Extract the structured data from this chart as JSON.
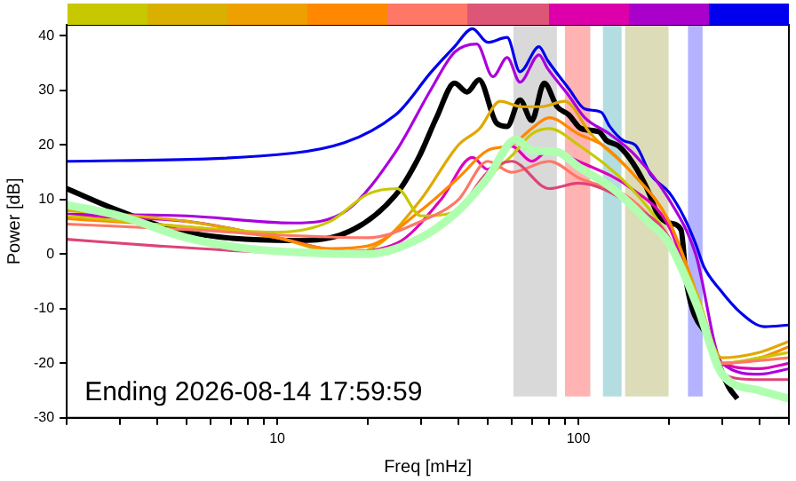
{
  "chart_data": {
    "type": "line",
    "xlabel": "Freq [mHz]",
    "ylabel": "Power [dB]",
    "annotations": [
      "Ending 2026-08-14 17:59:59"
    ],
    "xlim": [
      2,
      500
    ],
    "ylim": [
      -30,
      42
    ],
    "log": "x",
    "legend": false,
    "marker": "none",
    "line_style": "solid",
    "xticks": [
      {
        "value": 2,
        "label": null
      },
      {
        "value": 3,
        "label": null
      },
      {
        "value": 4,
        "label": null
      },
      {
        "value": 5,
        "label": null
      },
      {
        "value": 6,
        "label": null
      },
      {
        "value": 7,
        "label": null
      },
      {
        "value": 8,
        "label": null
      },
      {
        "value": 9,
        "label": null
      },
      10,
      {
        "value": 20,
        "label": null
      },
      {
        "value": 30,
        "label": null
      },
      {
        "value": 40,
        "label": null
      },
      {
        "value": 50,
        "label": null
      },
      {
        "value": 60,
        "label": null
      },
      {
        "value": 70,
        "label": null
      },
      {
        "value": 80,
        "label": null
      },
      {
        "value": 90,
        "label": null
      },
      100,
      {
        "value": 200,
        "label": null
      },
      {
        "value": 300,
        "label": null
      },
      {
        "value": 400,
        "label": null
      },
      {
        "value": 500,
        "label": null
      }
    ],
    "yticks": [
      -30,
      -20,
      -10,
      0,
      10,
      20,
      30,
      40
    ],
    "bands": [
      {
        "axis": "x",
        "from": 60,
        "to": 86,
        "color": "#d9d9d9"
      },
      {
        "axis": "x",
        "from": 89,
        "to": 111,
        "color": "#ffb3b3"
      },
      {
        "axis": "x",
        "from": 119,
        "to": 141,
        "color": "#b3dde0"
      },
      {
        "axis": "x",
        "from": 141,
        "to": 202,
        "color": "#dcdcb8"
      },
      {
        "axis": "x",
        "from": 228,
        "to": 262,
        "color": "#b3b3ff"
      }
    ],
    "series": [
      {
        "color": "#b0ffb0",
        "x": [
          2,
          3,
          5,
          8,
          12,
          20,
          30,
          40,
          50,
          62,
          70,
          85,
          100,
          130,
          170,
          200,
          250,
          300,
          400,
          500
        ],
        "values": [
          9,
          7,
          3,
          1,
          0.3,
          0,
          3,
          8,
          14,
          21,
          19,
          18.7,
          16,
          12,
          6,
          2,
          -10,
          -22,
          -25,
          -26.5
        ]
      },
      {
        "color": "#dd4477",
        "x": [
          2,
          4,
          8,
          15,
          20,
          30,
          40,
          50,
          60,
          80,
          100,
          150,
          200,
          250,
          300,
          400,
          500
        ],
        "values": [
          2.7,
          1.5,
          0.5,
          0,
          0.5,
          3,
          8,
          15,
          17,
          12,
          13,
          9,
          3,
          -10,
          -22,
          -23,
          -23
        ]
      },
      {
        "color": "#ff7766",
        "x": [
          2,
          5,
          10,
          20,
          30,
          40,
          50,
          60,
          80,
          100,
          150,
          200,
          250,
          300,
          400,
          500
        ],
        "values": [
          5.5,
          4.5,
          3.5,
          3,
          6,
          10,
          17,
          15,
          17,
          14,
          10,
          2,
          -10,
          -20,
          -19.5,
          -19
        ]
      },
      {
        "color": "#c8c800",
        "x": [
          2,
          5,
          10,
          15,
          20,
          25,
          30,
          40,
          50,
          60,
          70,
          80,
          100,
          150,
          200,
          250,
          300,
          400,
          500
        ],
        "values": [
          7,
          5,
          4,
          6,
          11,
          12,
          7,
          8,
          14,
          18,
          22,
          23,
          20,
          12,
          3,
          -8,
          -20,
          -19,
          -18
        ]
      },
      {
        "color": "#ff8800",
        "x": [
          2,
          5,
          10,
          15,
          20,
          30,
          40,
          50,
          60,
          70,
          80,
          100,
          120,
          150,
          200,
          250,
          300,
          400,
          500
        ],
        "values": [
          6.5,
          5,
          3,
          1,
          1.5,
          8,
          14,
          19,
          20,
          23,
          25,
          22,
          20,
          15,
          6,
          -8,
          -20,
          -19,
          -17
        ]
      },
      {
        "color": "#e0a800",
        "x": [
          2,
          5,
          10,
          17,
          22,
          30,
          40,
          47,
          55,
          65,
          75,
          90,
          110,
          150,
          200,
          250,
          300,
          400,
          500
        ],
        "values": [
          8,
          6,
          3,
          0,
          2,
          10,
          20,
          23,
          28,
          27,
          27,
          28,
          22,
          15,
          6,
          -8,
          -19,
          -18,
          -16
        ]
      },
      {
        "color": "#dd00bb",
        "x": [
          2,
          5,
          10,
          17,
          25,
          35,
          44.5,
          50,
          60,
          70,
          80,
          100,
          150,
          200,
          250,
          300,
          400,
          500
        ],
        "values": [
          7,
          6,
          3,
          0.5,
          2,
          10,
          17.7,
          15.5,
          19.8,
          17,
          19,
          17,
          12,
          5,
          -10,
          -20,
          -21,
          -20
        ]
      },
      {
        "color": "#aa00dd",
        "x": [
          2,
          5,
          11.3,
          17,
          24.7,
          32.5,
          38.8,
          46,
          52,
          58,
          64,
          74,
          79,
          93,
          105,
          127,
          155,
          200,
          245,
          300,
          400,
          500
        ],
        "values": [
          7.3,
          7,
          5.7,
          8,
          18.7,
          30.3,
          37,
          38.5,
          32.5,
          36,
          31.5,
          36.5,
          34,
          29,
          25,
          22,
          18,
          10,
          0,
          -20,
          -22,
          -21
        ]
      },
      {
        "color": "#0000ee",
        "x": [
          2,
          11.3,
          24.7,
          32.5,
          38.8,
          44.5,
          50,
          58,
          64,
          74,
          79,
          93,
          105,
          119,
          127,
          141,
          155,
          174,
          200,
          225,
          245,
          261,
          295,
          345,
          415,
          500
        ],
        "values": [
          17,
          18.5,
          25.5,
          33.4,
          38,
          41.3,
          38.8,
          39.7,
          33.4,
          38,
          35.5,
          30.3,
          26.6,
          26,
          23.4,
          20.8,
          19.9,
          14.5,
          11.3,
          6.6,
          1.9,
          -2.3,
          -6.5,
          -10.7,
          -13.3,
          -13
        ]
      },
      {
        "color": "#000000",
        "x": [
          2,
          2.9,
          4.5,
          7.1,
          11.3,
          16.2,
          24.7,
          29.5,
          33.8,
          38.8,
          42.7,
          46.8,
          53.5,
          58,
          64,
          70,
          77,
          85,
          93,
          102,
          117,
          124,
          136,
          152,
          171,
          182,
          200,
          219,
          229,
          274,
          315,
          337
        ],
        "values": [
          12,
          8.2,
          4.5,
          2.9,
          2.5,
          3.5,
          10.8,
          17.7,
          25,
          31.3,
          29.7,
          31.9,
          24,
          23.4,
          28.2,
          24.5,
          31.3,
          27,
          25.5,
          23,
          22.4,
          20.8,
          19.8,
          16.6,
          11.4,
          7.7,
          5.7,
          4.5,
          -5.5,
          -16,
          -24.3,
          -26.5
        ]
      }
    ]
  }
}
